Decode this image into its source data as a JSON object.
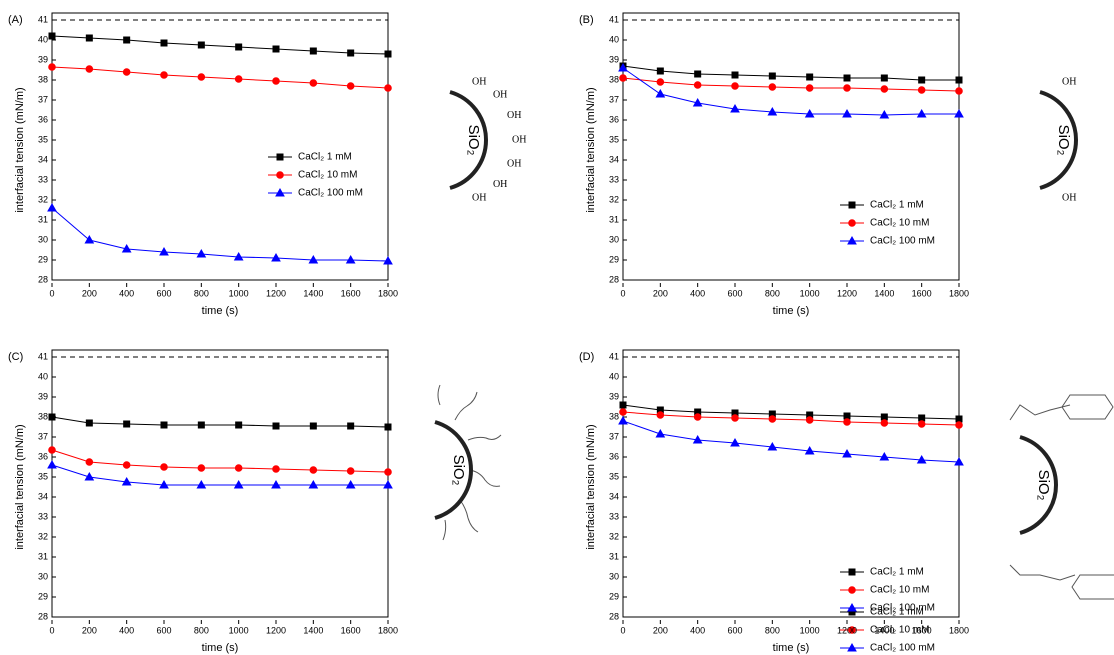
{
  "chart_data": [
    {
      "type": "line",
      "panel": "(A)",
      "x_label": "time (s)",
      "y_label": "interfacial tension (mN/m)",
      "x": [
        0,
        200,
        400,
        600,
        800,
        1000,
        1200,
        1400,
        1600,
        1800
      ],
      "xlim": [
        0,
        1800
      ],
      "xticks": [
        0,
        200,
        400,
        600,
        800,
        1000,
        1200,
        1400,
        1600,
        1800
      ],
      "ylim": [
        28,
        41
      ],
      "yticks": [
        28,
        29,
        30,
        31,
        32,
        33,
        34,
        35,
        36,
        37,
        38,
        39,
        40,
        41
      ],
      "reference_line": 41,
      "legend": "center right",
      "series": [
        {
          "name": "CaCl₂ 1 mM",
          "color": "#000000",
          "marker": "square",
          "values": [
            40.2,
            40.1,
            40.0,
            39.85,
            39.75,
            39.65,
            39.55,
            39.45,
            39.35,
            39.3
          ]
        },
        {
          "name": "CaCl₂ 10 mM",
          "color": "#ff0000",
          "marker": "circle",
          "values": [
            38.65,
            38.55,
            38.4,
            38.25,
            38.15,
            38.05,
            37.95,
            37.85,
            37.7,
            37.6
          ]
        },
        {
          "name": "CaCl₂ 100 mM",
          "color": "#0000ff",
          "marker": "triangle",
          "values": [
            31.6,
            30.0,
            29.55,
            29.4,
            29.3,
            29.15,
            29.1,
            29.0,
            29.0,
            28.95
          ]
        }
      ],
      "schematic": {
        "label": "SiO₂",
        "groups": [
          "OH",
          "OH",
          "OH",
          "OH",
          "OH",
          "OH",
          "OH"
        ]
      }
    },
    {
      "type": "line",
      "panel": "(B)",
      "x_label": "time (s)",
      "y_label": "interfacial tension (mN/m)",
      "x": [
        0,
        200,
        400,
        600,
        800,
        1000,
        1200,
        1400,
        1600,
        1800
      ],
      "xlim": [
        0,
        1800
      ],
      "xticks": [
        0,
        200,
        400,
        600,
        800,
        1000,
        1200,
        1400,
        1600,
        1800
      ],
      "ylim": [
        28,
        41
      ],
      "yticks": [
        28,
        29,
        30,
        31,
        32,
        33,
        34,
        35,
        36,
        37,
        38,
        39,
        40,
        41
      ],
      "reference_line": 41,
      "legend": "lower right",
      "series": [
        {
          "name": "CaCl₂ 1 mM",
          "color": "#000000",
          "marker": "square",
          "values": [
            38.7,
            38.45,
            38.3,
            38.25,
            38.2,
            38.15,
            38.1,
            38.1,
            38.0,
            38.0
          ]
        },
        {
          "name": "CaCl₂ 10 mM",
          "color": "#ff0000",
          "marker": "circle",
          "values": [
            38.1,
            37.9,
            37.75,
            37.7,
            37.65,
            37.6,
            37.6,
            37.55,
            37.5,
            37.45
          ]
        },
        {
          "name": "CaCl₂ 100 mM",
          "color": "#0000ff",
          "marker": "triangle",
          "values": [
            38.6,
            37.3,
            36.85,
            36.55,
            36.4,
            36.3,
            36.3,
            36.25,
            36.3,
            36.3
          ]
        }
      ],
      "schematic": {
        "label": "SiO₂",
        "groups": [
          "OH",
          "OH"
        ]
      }
    },
    {
      "type": "line",
      "panel": "(C)",
      "x_label": "time (s)",
      "y_label": "interfacial tension (mN/m)",
      "x": [
        0,
        200,
        400,
        600,
        800,
        1000,
        1200,
        1400,
        1600,
        1800
      ],
      "xlim": [
        0,
        1800
      ],
      "xticks": [
        0,
        200,
        400,
        600,
        800,
        1000,
        1200,
        1400,
        1600,
        1800
      ],
      "ylim": [
        28,
        41
      ],
      "yticks": [
        28,
        29,
        30,
        31,
        32,
        33,
        34,
        35,
        36,
        37,
        38,
        39,
        40,
        41
      ],
      "reference_line": 41,
      "legend": "lower right",
      "series": [
        {
          "name": "CaCl₂ 1 mM",
          "color": "#000000",
          "marker": "square",
          "values": [
            38.0,
            37.7,
            37.65,
            37.6,
            37.6,
            37.6,
            37.55,
            37.55,
            37.55,
            37.5
          ]
        },
        {
          "name": "CaCl₂ 10 mM",
          "color": "#ff0000",
          "marker": "circle",
          "values": [
            36.35,
            35.75,
            35.6,
            35.5,
            35.45,
            35.45,
            35.4,
            35.35,
            35.3,
            35.25
          ]
        },
        {
          "name": "CaCl₂ 100 mM",
          "color": "#0000ff",
          "marker": "triangle",
          "values": [
            35.6,
            35.0,
            34.75,
            34.6,
            34.6,
            34.6,
            34.6,
            34.6,
            34.6,
            34.6
          ]
        }
      ],
      "schematic": {
        "label": "SiO₂",
        "groups": []
      }
    },
    {
      "type": "line",
      "panel": "(D)",
      "x_label": "time (s)",
      "y_label": "interfacial tension (mN/m)",
      "x": [
        0,
        200,
        400,
        600,
        800,
        1000,
        1200,
        1400,
        1600,
        1800
      ],
      "xlim": [
        0,
        1800
      ],
      "xticks": [
        0,
        200,
        400,
        600,
        800,
        1000,
        1200,
        1400,
        1600,
        1800
      ],
      "ylim": [
        28,
        41
      ],
      "yticks": [
        28,
        29,
        30,
        31,
        32,
        33,
        34,
        35,
        36,
        37,
        38,
        39,
        40,
        41
      ],
      "reference_line": 41,
      "legend": "lower right",
      "series": [
        {
          "name": "CaCl₂ 1 mM",
          "color": "#000000",
          "marker": "square",
          "values": [
            38.6,
            38.35,
            38.25,
            38.2,
            38.15,
            38.1,
            38.05,
            38.0,
            37.95,
            37.9
          ]
        },
        {
          "name": "CaCl₂ 10 mM",
          "color": "#ff0000",
          "marker": "circle",
          "values": [
            38.25,
            38.1,
            38.0,
            37.95,
            37.9,
            37.85,
            37.75,
            37.7,
            37.65,
            37.6
          ]
        },
        {
          "name": "CaCl₂ 100 mM",
          "color": "#0000ff",
          "marker": "triangle",
          "values": [
            37.8,
            37.15,
            36.85,
            36.7,
            36.5,
            36.3,
            36.15,
            36.0,
            35.85,
            35.75
          ]
        }
      ],
      "schematic": {
        "label": "SiO₂",
        "groups": []
      }
    }
  ]
}
